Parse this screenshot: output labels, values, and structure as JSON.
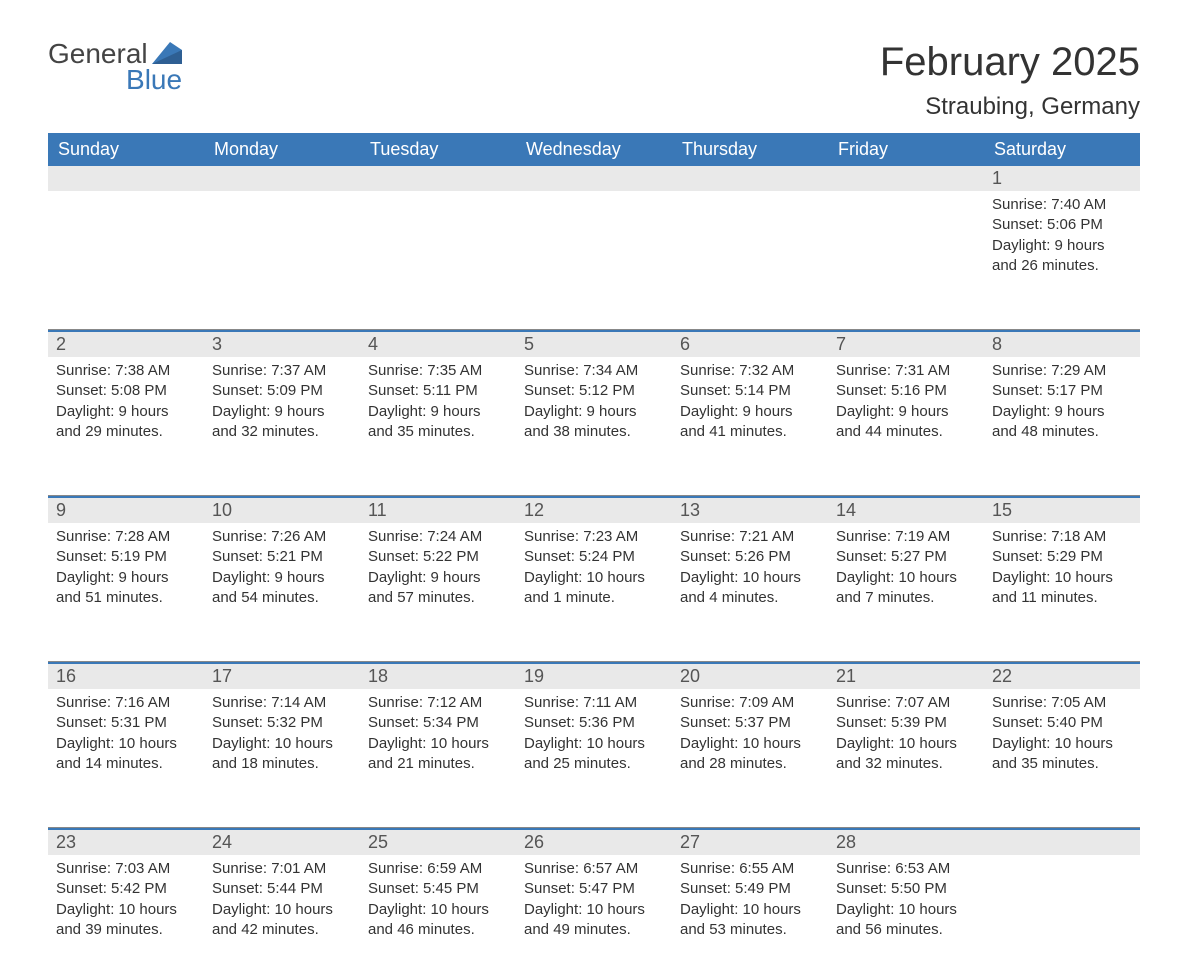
{
  "brand": {
    "name_part1": "General",
    "name_part2": "Blue",
    "color_primary": "#3a78b7",
    "color_text": "#444444"
  },
  "title": "February 2025",
  "location": "Straubing, Germany",
  "theme": {
    "header_bg": "#3a78b7",
    "header_text": "#ffffff",
    "daynum_bg": "#e9e9e9",
    "daynum_text": "#555555",
    "body_text": "#333333",
    "rule_color": "#888888",
    "title_fontsize": 40,
    "location_fontsize": 24,
    "dayhead_fontsize": 18,
    "daynum_fontsize": 18,
    "info_fontsize": 15
  },
  "day_headers": [
    "Sunday",
    "Monday",
    "Tuesday",
    "Wednesday",
    "Thursday",
    "Friday",
    "Saturday"
  ],
  "weeks": [
    [
      null,
      null,
      null,
      null,
      null,
      null,
      {
        "n": "1",
        "sunrise": "Sunrise: 7:40 AM",
        "sunset": "Sunset: 5:06 PM",
        "day1": "Daylight: 9 hours",
        "day2": "and 26 minutes."
      }
    ],
    [
      {
        "n": "2",
        "sunrise": "Sunrise: 7:38 AM",
        "sunset": "Sunset: 5:08 PM",
        "day1": "Daylight: 9 hours",
        "day2": "and 29 minutes."
      },
      {
        "n": "3",
        "sunrise": "Sunrise: 7:37 AM",
        "sunset": "Sunset: 5:09 PM",
        "day1": "Daylight: 9 hours",
        "day2": "and 32 minutes."
      },
      {
        "n": "4",
        "sunrise": "Sunrise: 7:35 AM",
        "sunset": "Sunset: 5:11 PM",
        "day1": "Daylight: 9 hours",
        "day2": "and 35 minutes."
      },
      {
        "n": "5",
        "sunrise": "Sunrise: 7:34 AM",
        "sunset": "Sunset: 5:12 PM",
        "day1": "Daylight: 9 hours",
        "day2": "and 38 minutes."
      },
      {
        "n": "6",
        "sunrise": "Sunrise: 7:32 AM",
        "sunset": "Sunset: 5:14 PM",
        "day1": "Daylight: 9 hours",
        "day2": "and 41 minutes."
      },
      {
        "n": "7",
        "sunrise": "Sunrise: 7:31 AM",
        "sunset": "Sunset: 5:16 PM",
        "day1": "Daylight: 9 hours",
        "day2": "and 44 minutes."
      },
      {
        "n": "8",
        "sunrise": "Sunrise: 7:29 AM",
        "sunset": "Sunset: 5:17 PM",
        "day1": "Daylight: 9 hours",
        "day2": "and 48 minutes."
      }
    ],
    [
      {
        "n": "9",
        "sunrise": "Sunrise: 7:28 AM",
        "sunset": "Sunset: 5:19 PM",
        "day1": "Daylight: 9 hours",
        "day2": "and 51 minutes."
      },
      {
        "n": "10",
        "sunrise": "Sunrise: 7:26 AM",
        "sunset": "Sunset: 5:21 PM",
        "day1": "Daylight: 9 hours",
        "day2": "and 54 minutes."
      },
      {
        "n": "11",
        "sunrise": "Sunrise: 7:24 AM",
        "sunset": "Sunset: 5:22 PM",
        "day1": "Daylight: 9 hours",
        "day2": "and 57 minutes."
      },
      {
        "n": "12",
        "sunrise": "Sunrise: 7:23 AM",
        "sunset": "Sunset: 5:24 PM",
        "day1": "Daylight: 10 hours",
        "day2": "and 1 minute."
      },
      {
        "n": "13",
        "sunrise": "Sunrise: 7:21 AM",
        "sunset": "Sunset: 5:26 PM",
        "day1": "Daylight: 10 hours",
        "day2": "and 4 minutes."
      },
      {
        "n": "14",
        "sunrise": "Sunrise: 7:19 AM",
        "sunset": "Sunset: 5:27 PM",
        "day1": "Daylight: 10 hours",
        "day2": "and 7 minutes."
      },
      {
        "n": "15",
        "sunrise": "Sunrise: 7:18 AM",
        "sunset": "Sunset: 5:29 PM",
        "day1": "Daylight: 10 hours",
        "day2": "and 11 minutes."
      }
    ],
    [
      {
        "n": "16",
        "sunrise": "Sunrise: 7:16 AM",
        "sunset": "Sunset: 5:31 PM",
        "day1": "Daylight: 10 hours",
        "day2": "and 14 minutes."
      },
      {
        "n": "17",
        "sunrise": "Sunrise: 7:14 AM",
        "sunset": "Sunset: 5:32 PM",
        "day1": "Daylight: 10 hours",
        "day2": "and 18 minutes."
      },
      {
        "n": "18",
        "sunrise": "Sunrise: 7:12 AM",
        "sunset": "Sunset: 5:34 PM",
        "day1": "Daylight: 10 hours",
        "day2": "and 21 minutes."
      },
      {
        "n": "19",
        "sunrise": "Sunrise: 7:11 AM",
        "sunset": "Sunset: 5:36 PM",
        "day1": "Daylight: 10 hours",
        "day2": "and 25 minutes."
      },
      {
        "n": "20",
        "sunrise": "Sunrise: 7:09 AM",
        "sunset": "Sunset: 5:37 PM",
        "day1": "Daylight: 10 hours",
        "day2": "and 28 minutes."
      },
      {
        "n": "21",
        "sunrise": "Sunrise: 7:07 AM",
        "sunset": "Sunset: 5:39 PM",
        "day1": "Daylight: 10 hours",
        "day2": "and 32 minutes."
      },
      {
        "n": "22",
        "sunrise": "Sunrise: 7:05 AM",
        "sunset": "Sunset: 5:40 PM",
        "day1": "Daylight: 10 hours",
        "day2": "and 35 minutes."
      }
    ],
    [
      {
        "n": "23",
        "sunrise": "Sunrise: 7:03 AM",
        "sunset": "Sunset: 5:42 PM",
        "day1": "Daylight: 10 hours",
        "day2": "and 39 minutes."
      },
      {
        "n": "24",
        "sunrise": "Sunrise: 7:01 AM",
        "sunset": "Sunset: 5:44 PM",
        "day1": "Daylight: 10 hours",
        "day2": "and 42 minutes."
      },
      {
        "n": "25",
        "sunrise": "Sunrise: 6:59 AM",
        "sunset": "Sunset: 5:45 PM",
        "day1": "Daylight: 10 hours",
        "day2": "and 46 minutes."
      },
      {
        "n": "26",
        "sunrise": "Sunrise: 6:57 AM",
        "sunset": "Sunset: 5:47 PM",
        "day1": "Daylight: 10 hours",
        "day2": "and 49 minutes."
      },
      {
        "n": "27",
        "sunrise": "Sunrise: 6:55 AM",
        "sunset": "Sunset: 5:49 PM",
        "day1": "Daylight: 10 hours",
        "day2": "and 53 minutes."
      },
      {
        "n": "28",
        "sunrise": "Sunrise: 6:53 AM",
        "sunset": "Sunset: 5:50 PM",
        "day1": "Daylight: 10 hours",
        "day2": "and 56 minutes."
      },
      null
    ]
  ]
}
